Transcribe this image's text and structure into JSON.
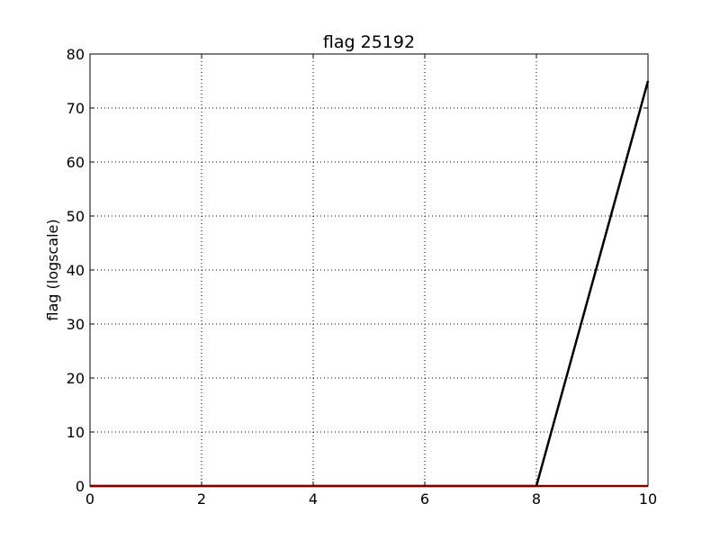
{
  "chart_data": {
    "type": "line",
    "title": "flag 25192",
    "xlabel": "",
    "ylabel": "flag (logscale)",
    "xlim": [
      0,
      10
    ],
    "ylim": [
      0,
      80
    ],
    "x_ticks": [
      0,
      2,
      4,
      6,
      8,
      10
    ],
    "y_ticks": [
      0,
      10,
      20,
      30,
      40,
      50,
      60,
      70,
      80
    ],
    "grid": true,
    "series": [
      {
        "color": "#000000",
        "x": [
          0,
          2,
          4,
          6,
          8,
          10
        ],
        "y": [
          0,
          0,
          0,
          0,
          0,
          75
        ]
      },
      {
        "color": "#ff0000",
        "x": [
          0,
          2,
          4,
          6,
          8,
          10
        ],
        "y": [
          0,
          0,
          0,
          0,
          0,
          0
        ]
      }
    ]
  }
}
